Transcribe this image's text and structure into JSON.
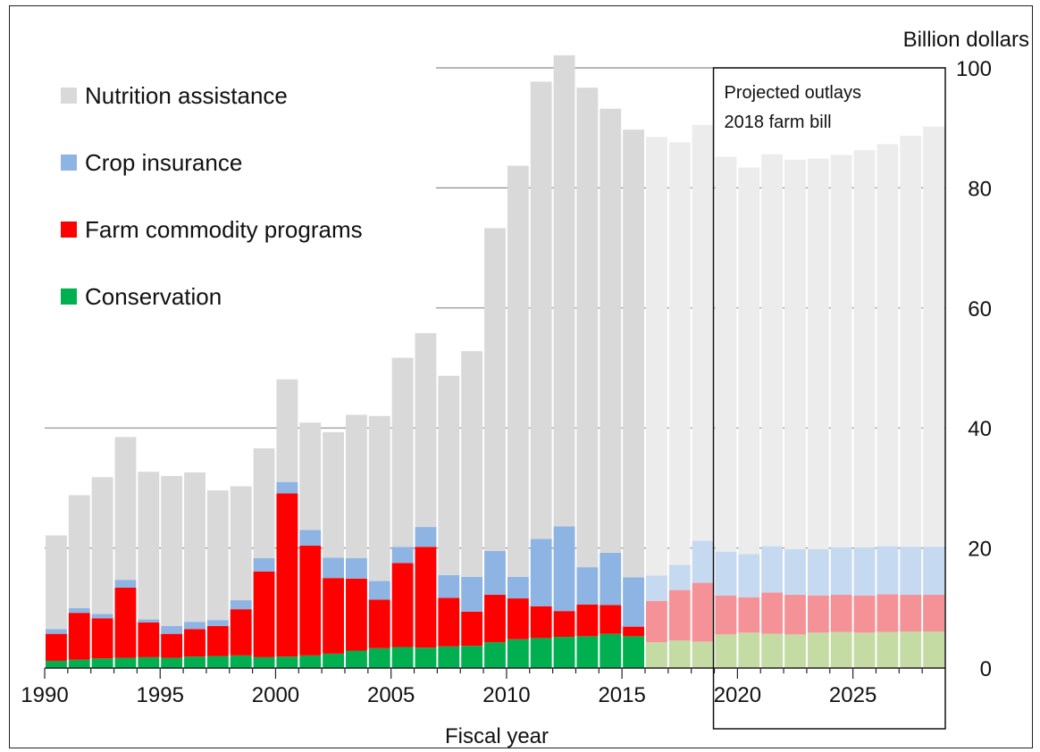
{
  "chart_data": {
    "type": "bar",
    "stacked": true,
    "y_unit_label": "Billion dollars",
    "xlabel": "Fiscal year",
    "ylim": [
      0,
      100
    ],
    "y_ticks": [
      0,
      20,
      40,
      60,
      80,
      100
    ],
    "x_tick_labels": [
      "1990",
      "1995",
      "2000",
      "2005",
      "2010",
      "2015",
      "2020",
      "2025"
    ],
    "annotation": [
      "Projected outlays",
      "2018 farm bill"
    ],
    "projection_start_year": 2016,
    "categories": [
      1990,
      1991,
      1992,
      1993,
      1994,
      1995,
      1996,
      1997,
      1998,
      1999,
      2000,
      2001,
      2002,
      2003,
      2004,
      2005,
      2006,
      2007,
      2008,
      2009,
      2010,
      2011,
      2012,
      2013,
      2014,
      2015,
      2016,
      2017,
      2018,
      2019,
      2020,
      2021,
      2022,
      2023,
      2024,
      2025,
      2026,
      2027,
      2028
    ],
    "series": [
      {
        "name": "Conservation",
        "color": "#00b050",
        "projected_color": "#c4dca4",
        "values": [
          1.2,
          1.4,
          1.6,
          1.7,
          1.8,
          1.7,
          1.9,
          2.0,
          2.1,
          1.8,
          1.9,
          2.1,
          2.4,
          2.9,
          3.3,
          3.5,
          3.4,
          3.6,
          3.7,
          4.3,
          4.8,
          5.0,
          5.2,
          5.3,
          5.7,
          5.3,
          4.3,
          4.6,
          4.4,
          5.6,
          5.9,
          5.7,
          5.6,
          5.9,
          6.0,
          5.9,
          6.0,
          6.1,
          6.1
        ]
      },
      {
        "name": "Farm commodity programs",
        "color": "#ff0000",
        "projected_color": "#f59297",
        "values": [
          4.5,
          7.8,
          6.7,
          11.7,
          5.8,
          4.0,
          4.6,
          5.0,
          7.7,
          14.3,
          27.2,
          18.3,
          12.6,
          12.0,
          8.1,
          14.0,
          16.8,
          8.1,
          5.7,
          7.9,
          6.8,
          5.3,
          4.3,
          5.3,
          4.8,
          1.6,
          6.9,
          8.4,
          9.8,
          6.5,
          5.9,
          6.9,
          6.6,
          6.2,
          6.2,
          6.2,
          6.3,
          6.1,
          6.1
        ]
      },
      {
        "name": "Crop insurance",
        "color": "#8db4e2",
        "projected_color": "#c5d9f1",
        "values": [
          0.8,
          0.8,
          0.7,
          1.3,
          0.5,
          1.3,
          1.2,
          1.0,
          1.5,
          2.2,
          1.9,
          2.6,
          3.4,
          3.4,
          3.1,
          2.7,
          3.3,
          3.8,
          5.8,
          7.3,
          3.6,
          11.2,
          14.1,
          6.2,
          8.7,
          8.2,
          4.2,
          4.2,
          7.0,
          7.3,
          7.2,
          7.7,
          7.6,
          7.7,
          7.9,
          8.0,
          8.0,
          8.0,
          8.0
        ]
      },
      {
        "name": "Nutrition assistance",
        "color": "#d9d9d9",
        "projected_color": "#ececec",
        "values": [
          15.6,
          18.8,
          22.8,
          23.8,
          24.6,
          25.0,
          24.9,
          21.6,
          19.0,
          18.3,
          17.1,
          17.9,
          20.9,
          23.9,
          27.5,
          31.5,
          32.3,
          33.2,
          37.6,
          53.8,
          68.5,
          76.2,
          78.5,
          79.9,
          74.0,
          74.6,
          73.1,
          70.4,
          69.3,
          65.8,
          64.4,
          65.3,
          64.9,
          65.1,
          65.4,
          66.2,
          67.0,
          68.5,
          70.0
        ]
      }
    ],
    "legend": [
      "Nutrition assistance",
      "Crop insurance",
      "Farm commodity programs",
      "Conservation"
    ],
    "legend_position": "top-left",
    "grid": true
  }
}
